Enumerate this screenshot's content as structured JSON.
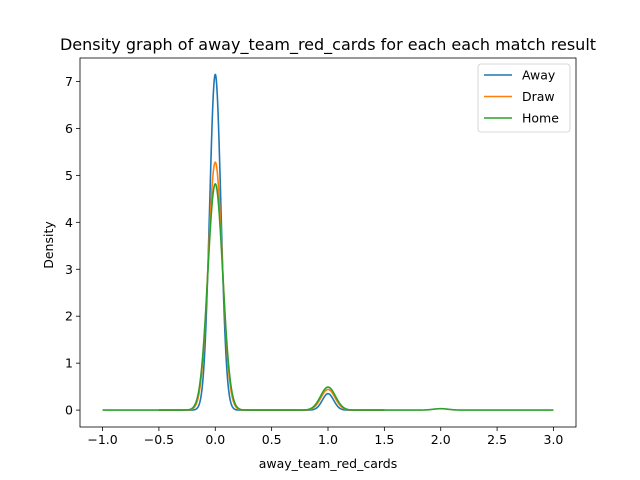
{
  "chart_data": {
    "type": "line",
    "title": "Density graph of away_team_red_cards for each each match result",
    "xlabel": "away_team_red_cards",
    "ylabel": "Density",
    "xlim": [
      -1.2,
      3.2
    ],
    "ylim": [
      -0.36,
      7.5
    ],
    "xticks": [
      -1.0,
      -0.5,
      0.0,
      0.5,
      1.0,
      1.5,
      2.0,
      2.5,
      3.0
    ],
    "xtick_labels": [
      "−1.0",
      "−0.5",
      "0.0",
      "0.5",
      "1.0",
      "1.5",
      "2.0",
      "2.5",
      "3.0"
    ],
    "yticks": [
      0,
      1,
      2,
      3,
      4,
      5,
      6,
      7
    ],
    "ytick_labels": [
      "0",
      "1",
      "2",
      "3",
      "4",
      "5",
      "6",
      "7"
    ],
    "grid": false,
    "legend_position": "top-right",
    "series": [
      {
        "name": "Away",
        "color": "#1f77b4",
        "x_range": [
          -0.5,
          1.5
        ],
        "peaks": [
          {
            "x": 0.0,
            "density": 7.15,
            "sigma": 0.05
          },
          {
            "x": 1.0,
            "density": 0.35,
            "sigma": 0.05
          }
        ]
      },
      {
        "name": "Draw",
        "color": "#ff7f0e",
        "x_range": [
          -0.5,
          1.5
        ],
        "peaks": [
          {
            "x": 0.0,
            "density": 5.28,
            "sigma": 0.062
          },
          {
            "x": 1.0,
            "density": 0.44,
            "sigma": 0.062
          }
        ]
      },
      {
        "name": "Home",
        "color": "#2ca02c",
        "x_range": [
          -1.0,
          3.0
        ],
        "peaks": [
          {
            "x": 0.0,
            "density": 4.82,
            "sigma": 0.066
          },
          {
            "x": 1.0,
            "density": 0.49,
            "sigma": 0.066
          },
          {
            "x": 2.0,
            "density": 0.03,
            "sigma": 0.066
          }
        ]
      }
    ]
  }
}
